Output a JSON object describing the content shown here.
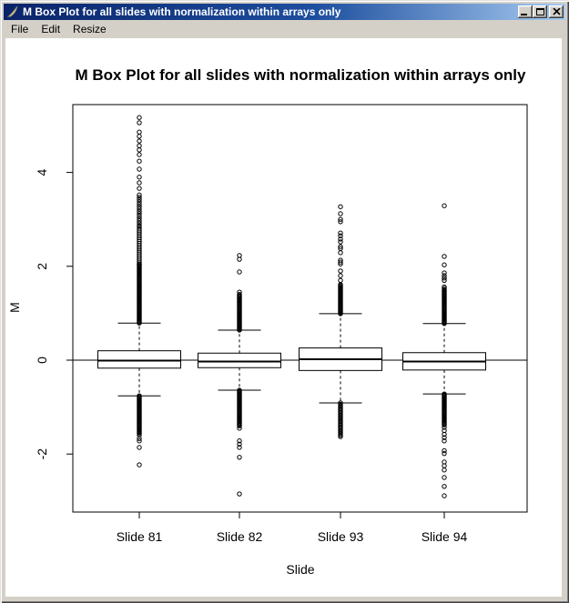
{
  "window": {
    "title": "M Box Plot for all slides with normalization within arrays only"
  },
  "menu": {
    "items": [
      "File",
      "Edit",
      "Resize"
    ]
  },
  "colors": {
    "titlebar_left": "#0a246a",
    "titlebar_right": "#a6caf0",
    "window_face": "#d4d0c8",
    "plot_background": "#ffffff",
    "plot_foreground": "#000000"
  },
  "chart_data": {
    "type": "boxplot",
    "title": "M Box Plot for all slides with normalization within arrays only",
    "xlabel": "Slide",
    "ylabel": "M",
    "categories": [
      "Slide 81",
      "Slide 82",
      "Slide 93",
      "Slide 94"
    ],
    "y_ticks": [
      4,
      2,
      0,
      -2
    ],
    "ylim": [
      -3.2,
      5.4
    ],
    "reference_line_y": 0,
    "grid": false,
    "boxes": [
      {
        "label": "Slide 81",
        "q1": -0.17,
        "median": -0.01,
        "q3": 0.2,
        "whisker_low": -0.76,
        "whisker_high": 0.79,
        "outlier_runs": [
          [
            0.79,
            2.05,
            0.02
          ],
          [
            2.05,
            2.85,
            0.04
          ],
          [
            2.87,
            3.5,
            0.05
          ],
          [
            -0.76,
            -1.55,
            0.02
          ]
        ],
        "outliers": [
          3.66,
          3.78,
          3.9,
          4.07,
          4.24,
          4.38,
          4.48,
          4.57,
          4.67,
          4.77,
          4.86,
          5.06,
          5.17,
          -1.6,
          -1.67,
          -1.72,
          -1.86,
          -2.23
        ]
      },
      {
        "label": "Slide 82",
        "q1": -0.16,
        "median": -0.03,
        "q3": 0.15,
        "whisker_low": -0.64,
        "whisker_high": 0.64,
        "outlier_runs": [
          [
            0.64,
            1.41,
            0.02
          ],
          [
            -0.64,
            -1.4,
            0.02
          ]
        ],
        "outliers": [
          1.45,
          1.88,
          2.15,
          2.23,
          -1.45,
          -1.72,
          -1.79,
          -1.86,
          -2.07,
          -2.85
        ]
      },
      {
        "label": "Slide 93",
        "q1": -0.22,
        "median": 0.02,
        "q3": 0.26,
        "whisker_low": -0.91,
        "whisker_high": 0.99,
        "outlier_runs": [
          [
            0.99,
            1.61,
            0.02
          ],
          [
            -0.91,
            -1.63,
            0.03
          ]
        ],
        "outliers": [
          1.7,
          1.8,
          1.9,
          2.05,
          2.09,
          2.13,
          2.29,
          2.38,
          2.42,
          2.52,
          2.58,
          2.65,
          2.71,
          2.95,
          3.0,
          3.12,
          3.27
        ]
      },
      {
        "label": "Slide 94",
        "q1": -0.21,
        "median": -0.03,
        "q3": 0.16,
        "whisker_low": -0.72,
        "whisker_high": 0.78,
        "outlier_runs": [
          [
            0.78,
            1.47,
            0.02
          ],
          [
            -0.72,
            -1.38,
            0.02
          ]
        ],
        "outliers": [
          1.5,
          1.53,
          1.56,
          1.7,
          1.75,
          1.8,
          1.86,
          2.03,
          2.21,
          3.29,
          -1.43,
          -1.5,
          -1.58,
          -1.65,
          -1.72,
          -1.93,
          -1.99,
          -2.17,
          -2.25,
          -2.34,
          -2.5,
          -2.69,
          -2.89
        ]
      }
    ]
  }
}
